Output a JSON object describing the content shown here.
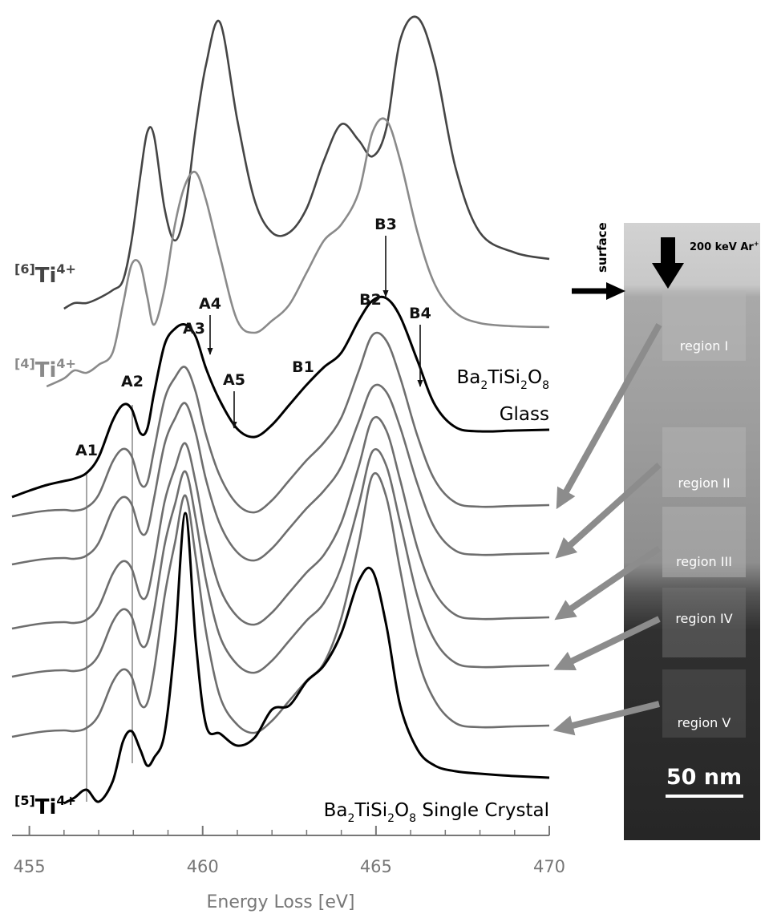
{
  "chart_data": {
    "type": "line",
    "xlabel": "Energy Loss [eV]",
    "xlim": [
      454.5,
      470
    ],
    "xticks": [
      455,
      460,
      465,
      470
    ],
    "xminorticks": [
      456,
      457,
      458,
      459,
      461,
      462,
      463,
      464,
      466,
      467,
      468,
      469
    ],
    "ylim": [
      0,
      104
    ],
    "x": [
      454.5,
      455,
      455.5,
      456,
      456.3,
      456.65,
      457,
      457.4,
      457.7,
      457.95,
      458.2,
      458.4,
      458.6,
      458.9,
      459.2,
      459.5,
      459.8,
      460.1,
      460.5,
      461,
      461.5,
      462,
      462.5,
      463,
      463.5,
      464,
      464.5,
      464.9,
      465.3,
      465.7,
      466.2,
      466.7,
      467.3,
      468,
      469,
      470
    ],
    "series": [
      {
        "species": [
          {
            "sup": "[6]"
          },
          "Ti",
          {
            "sup": "4+"
          }
        ],
        "color": "#454545",
        "values": [
          null,
          null,
          null,
          65.7,
          66.4,
          66.4,
          67.0,
          68.0,
          69.2,
          74.2,
          82.2,
          87.7,
          87.2,
          78.2,
          74.2,
          78.2,
          88.2,
          96.2,
          101.4,
          89.2,
          79.2,
          75.2,
          75.2,
          78.2,
          84.2,
          88.7,
          86.7,
          84.7,
          88.2,
          99.2,
          102.0,
          96.2,
          83.2,
          75.2,
          72.7,
          71.9
        ]
      },
      {
        "species": [
          {
            "sup": "[4]"
          },
          "Ti",
          {
            "sup": "4+"
          }
        ],
        "color": "#8a8a8a",
        "values": [
          null,
          null,
          56.0,
          57.0,
          58.0,
          57.7,
          58.7,
          60.2,
          66.2,
          71.2,
          71.2,
          67.2,
          63.7,
          68.2,
          76.2,
          81.2,
          82.7,
          79.2,
          72.2,
          64.2,
          62.7,
          64.2,
          66.2,
          70.2,
          74.2,
          76.2,
          80.2,
          87.7,
          89.2,
          84.2,
          75.2,
          68.7,
          65.2,
          63.9,
          63.5,
          63.4
        ]
      },
      {
        "material": [
          [
            "Ba",
            {
              "sub": "2"
            },
            "TiSi",
            {
              "sub": "2"
            },
            "O",
            {
              "sub": "8"
            }
          ],
          [
            "Glass"
          ]
        ],
        "color": "#000000",
        "values": [
          42.2,
          43.0,
          43.7,
          44.2,
          44.5,
          45.2,
          47.2,
          51.7,
          53.7,
          53.2,
          50.2,
          50.7,
          55.2,
          61.2,
          63.2,
          63.7,
          62.2,
          58.2,
          54.2,
          50.7,
          49.7,
          51.2,
          53.7,
          56.2,
          58.4,
          60.2,
          64.2,
          66.7,
          67.0,
          64.7,
          59.2,
          53.7,
          50.9,
          50.4,
          50.5,
          50.6
        ]
      },
      {
        "color": "#6e6e6e",
        "values": [
          39.8,
          40.2,
          40.5,
          40.6,
          40.5,
          40.9,
          42.5,
          46.6,
          48.2,
          47.3,
          43.9,
          44.0,
          48.1,
          54.4,
          57.1,
          58.4,
          55.3,
          49.9,
          44.8,
          41.3,
          40.3,
          41.8,
          44.3,
          46.8,
          49.0,
          52.1,
          57.9,
          62.4,
          61.7,
          57.1,
          49.8,
          44.3,
          41.5,
          41.0,
          41.1,
          41.2
        ]
      },
      {
        "color": "#6e6e6e",
        "values": [
          33.8,
          34.2,
          34.5,
          34.6,
          34.5,
          34.9,
          36.5,
          40.6,
          42.2,
          41.3,
          37.9,
          38.0,
          42.1,
          48.8,
          52.0,
          53.9,
          50.2,
          44.3,
          38.8,
          35.3,
          34.3,
          35.8,
          38.3,
          40.8,
          43.0,
          46.0,
          51.6,
          55.9,
          55.3,
          50.9,
          43.8,
          38.3,
          35.5,
          35.0,
          35.1,
          35.2
        ]
      },
      {
        "color": "#6e6e6e",
        "values": [
          25.8,
          26.2,
          26.5,
          26.6,
          26.5,
          26.9,
          28.5,
          32.6,
          34.2,
          33.3,
          29.9,
          30.0,
          34.1,
          41.6,
          45.8,
          48.9,
          44.0,
          37.1,
          30.8,
          27.3,
          26.3,
          27.8,
          30.3,
          32.8,
          35.0,
          39.0,
          46.0,
          51.9,
          50.5,
          44.3,
          35.8,
          30.3,
          27.5,
          27.0,
          27.1,
          27.2
        ]
      },
      {
        "color": "#6e6e6e",
        "values": [
          19.8,
          20.2,
          20.5,
          20.6,
          20.5,
          20.9,
          22.5,
          26.6,
          28.2,
          27.3,
          23.9,
          24.0,
          28.1,
          36.2,
          41.3,
          45.4,
          39.5,
          31.7,
          24.8,
          21.3,
          20.3,
          21.8,
          24.3,
          26.8,
          29.0,
          33.5,
          41.2,
          47.9,
          46.1,
          39.0,
          29.8,
          24.3,
          21.5,
          21.0,
          21.1,
          21.2
        ]
      },
      {
        "color": "#6e6e6e",
        "values": [
          12.3,
          12.7,
          13.0,
          13.1,
          13.0,
          13.4,
          15.0,
          19.1,
          20.7,
          19.8,
          16.4,
          16.5,
          20.6,
          29.8,
          36.5,
          42.4,
          34.7,
          25.3,
          17.3,
          13.8,
          12.8,
          14.3,
          16.8,
          19.3,
          21.5,
          27.1,
          36.4,
          44.9,
          42.2,
          33.1,
          22.3,
          16.8,
          14.0,
          13.5,
          13.6,
          13.7
        ]
      },
      {
        "species": [
          {
            "sup": "[5]"
          },
          "Ti",
          {
            "sup": "4+"
          }
        ],
        "material": [
          [
            "Ba",
            {
              "sub": "2"
            },
            "TiSi",
            {
              "sub": "2"
            },
            "O",
            {
              "sub": "8"
            },
            " Single Crystal"
          ]
        ],
        "color": "#000000",
        "values": [
          null,
          null,
          null,
          4.0,
          4.7,
          5.7,
          4.2,
          6.7,
          11.7,
          13.0,
          10.7,
          8.7,
          9.7,
          12.7,
          24.2,
          40.2,
          24.2,
          13.7,
          12.7,
          11.2,
          12.2,
          15.7,
          16.2,
          19.2,
          21.2,
          25.2,
          31.7,
          33.0,
          26.2,
          16.2,
          10.7,
          8.7,
          8.0,
          7.7,
          7.4,
          7.2
        ]
      }
    ],
    "annotations": [
      "A1",
      "A2",
      "A3",
      "A4",
      "A5",
      "B1",
      "B2",
      "B3",
      "B4"
    ]
  },
  "tem": {
    "surface_label": "surface",
    "beam_label": [
      "200 keV Ar",
      {
        "sup": "+"
      }
    ],
    "regions": [
      "region I",
      "region II",
      "region III",
      "region IV",
      "region V"
    ],
    "scale_bar": "50 nm"
  }
}
